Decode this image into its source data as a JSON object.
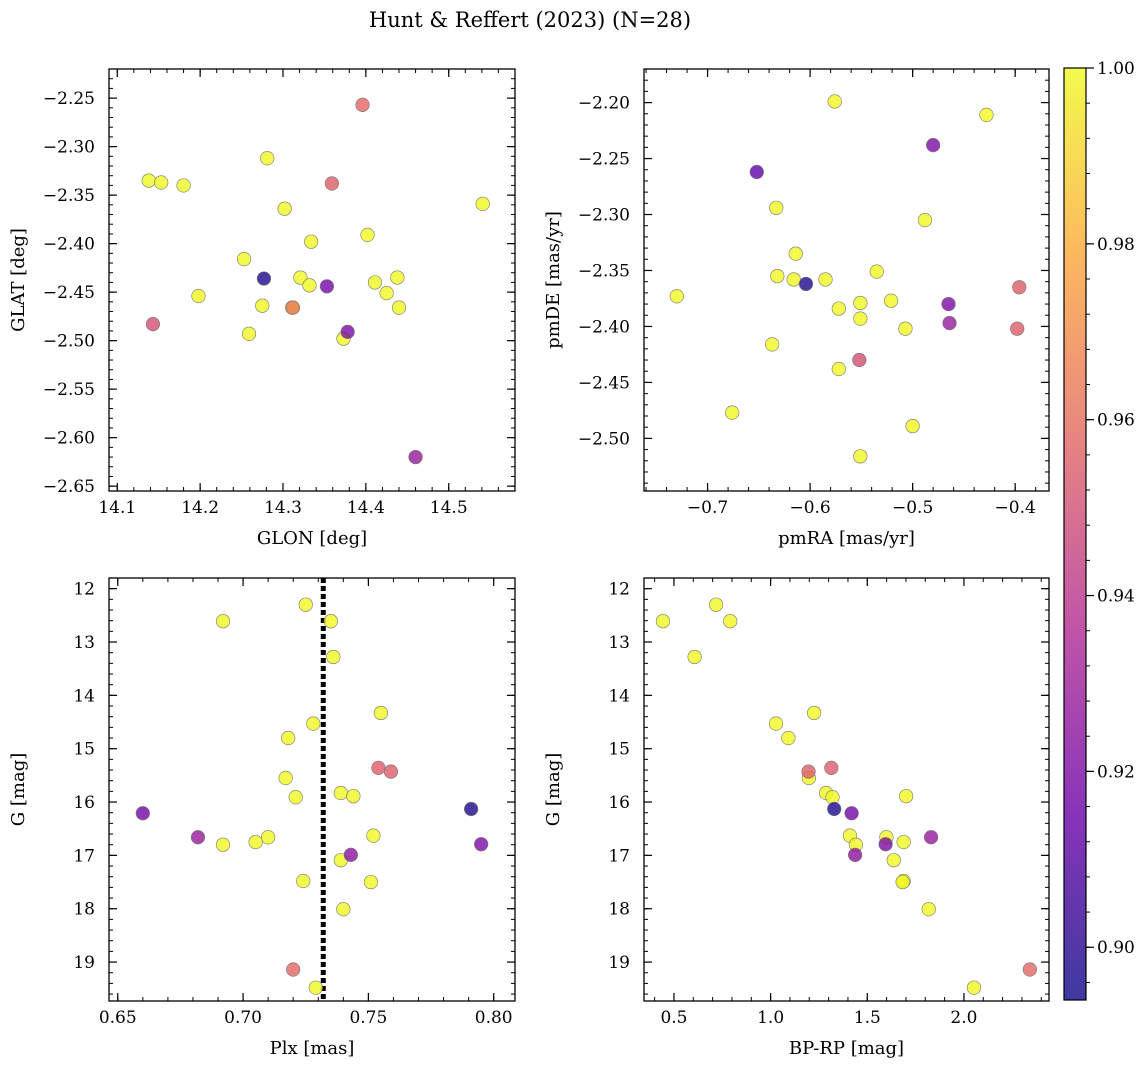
{
  "figure": {
    "title": "Hunt & Reffert (2023) (N=28)",
    "colormap": [
      "#0d0887",
      "#6a00a8",
      "#b12a90",
      "#e16462",
      "#fca636",
      "#f0f921"
    ],
    "colorbar": {
      "range": [
        0.894,
        1.0
      ],
      "ticks": [
        0.9,
        0.92,
        0.94,
        0.96,
        0.98,
        1.0
      ],
      "tick_labels": [
        "0.90",
        "0.92",
        "0.94",
        "0.96",
        "0.98",
        "1.00"
      ]
    }
  },
  "chart_data": [
    {
      "type": "scatter",
      "title": "",
      "xlabel": "GLON [deg]",
      "ylabel": "GLAT [deg]",
      "xlim": [
        14.09,
        14.58
      ],
      "ylim": [
        -2.655,
        -2.22
      ],
      "y_inverted": false,
      "xticks": [
        14.1,
        14.2,
        14.3,
        14.4,
        14.5
      ],
      "xtick_labels": [
        "14.1",
        "14.2",
        "14.3",
        "14.4",
        "14.5"
      ],
      "yticks": [
        -2.25,
        -2.3,
        -2.35,
        -2.4,
        -2.45,
        -2.5,
        -2.55,
        -2.6,
        -2.65
      ],
      "ytick_labels": [
        "−2.25",
        "−2.30",
        "−2.35",
        "−2.40",
        "−2.45",
        "−2.50",
        "−2.55",
        "−2.60",
        "−2.65"
      ],
      "points": [
        {
          "x": 14.396,
          "y": -2.257,
          "c": 0.958
        },
        {
          "x": 14.281,
          "y": -2.312,
          "c": 1.0
        },
        {
          "x": 14.138,
          "y": -2.335,
          "c": 1.0
        },
        {
          "x": 14.153,
          "y": -2.337,
          "c": 1.0
        },
        {
          "x": 14.18,
          "y": -2.34,
          "c": 1.0
        },
        {
          "x": 14.359,
          "y": -2.338,
          "c": 0.955
        },
        {
          "x": 14.541,
          "y": -2.359,
          "c": 1.0
        },
        {
          "x": 14.302,
          "y": -2.364,
          "c": 1.0
        },
        {
          "x": 14.402,
          "y": -2.391,
          "c": 1.0
        },
        {
          "x": 14.334,
          "y": -2.398,
          "c": 1.0
        },
        {
          "x": 14.253,
          "y": -2.416,
          "c": 1.0
        },
        {
          "x": 14.277,
          "y": -2.436,
          "c": 0.897
        },
        {
          "x": 14.321,
          "y": -2.435,
          "c": 1.0
        },
        {
          "x": 14.438,
          "y": -2.435,
          "c": 1.0
        },
        {
          "x": 14.411,
          "y": -2.44,
          "c": 1.0
        },
        {
          "x": 14.332,
          "y": -2.443,
          "c": 1.0
        },
        {
          "x": 14.353,
          "y": -2.444,
          "c": 0.918
        },
        {
          "x": 14.425,
          "y": -2.451,
          "c": 1.0
        },
        {
          "x": 14.198,
          "y": -2.454,
          "c": 1.0
        },
        {
          "x": 14.275,
          "y": -2.464,
          "c": 1.0
        },
        {
          "x": 14.312,
          "y": -2.466,
          "c": 0.962
        },
        {
          "x": 14.311,
          "y": -2.466,
          "c": 1.0
        },
        {
          "x": 14.44,
          "y": -2.466,
          "c": 1.0
        },
        {
          "x": 14.143,
          "y": -2.483,
          "c": 0.95
        },
        {
          "x": 14.378,
          "y": -2.491,
          "c": 0.92
        },
        {
          "x": 14.259,
          "y": -2.493,
          "c": 1.0
        },
        {
          "x": 14.373,
          "y": -2.498,
          "c": 1.0
        },
        {
          "x": 14.46,
          "y": -2.62,
          "c": 0.928
        }
      ]
    },
    {
      "type": "scatter",
      "title": "",
      "xlabel": "pmRA [mas/yr]",
      "ylabel": "pmDE [mas/yr]",
      "xlim": [
        -0.762,
        -0.367
      ],
      "ylim": [
        -2.547,
        -2.17
      ],
      "y_inverted": false,
      "xticks": [
        -0.7,
        -0.6,
        -0.5,
        -0.4
      ],
      "xtick_labels": [
        "−0.7",
        "−0.6",
        "−0.5",
        "−0.4"
      ],
      "yticks": [
        -2.2,
        -2.25,
        -2.3,
        -2.35,
        -2.4,
        -2.45,
        -2.5
      ],
      "ytick_labels": [
        "−2.20",
        "−2.25",
        "−2.30",
        "−2.35",
        "−2.40",
        "−2.45",
        "−2.50"
      ],
      "points": [
        {
          "x": -0.576,
          "y": -2.199,
          "c": 1.0
        },
        {
          "x": -0.428,
          "y": -2.211,
          "c": 1.0
        },
        {
          "x": -0.48,
          "y": -2.238,
          "c": 0.92
        },
        {
          "x": -0.652,
          "y": -2.262,
          "c": 0.913
        },
        {
          "x": -0.633,
          "y": -2.294,
          "c": 1.0
        },
        {
          "x": -0.488,
          "y": -2.305,
          "c": 1.0
        },
        {
          "x": -0.614,
          "y": -2.335,
          "c": 1.0
        },
        {
          "x": -0.535,
          "y": -2.351,
          "c": 1.0
        },
        {
          "x": -0.632,
          "y": -2.355,
          "c": 1.0
        },
        {
          "x": -0.616,
          "y": -2.358,
          "c": 1.0
        },
        {
          "x": -0.585,
          "y": -2.358,
          "c": 1.0
        },
        {
          "x": -0.604,
          "y": -2.362,
          "c": 0.897
        },
        {
          "x": -0.396,
          "y": -2.365,
          "c": 0.955
        },
        {
          "x": -0.73,
          "y": -2.373,
          "c": 1.0
        },
        {
          "x": -0.521,
          "y": -2.377,
          "c": 1.0
        },
        {
          "x": -0.551,
          "y": -2.379,
          "c": 1.0
        },
        {
          "x": -0.465,
          "y": -2.38,
          "c": 0.92
        },
        {
          "x": -0.572,
          "y": -2.384,
          "c": 1.0
        },
        {
          "x": -0.551,
          "y": -2.393,
          "c": 1.0
        },
        {
          "x": -0.464,
          "y": -2.397,
          "c": 0.928
        },
        {
          "x": -0.398,
          "y": -2.402,
          "c": 0.955
        },
        {
          "x": -0.507,
          "y": -2.402,
          "c": 1.0
        },
        {
          "x": -0.637,
          "y": -2.416,
          "c": 1.0
        },
        {
          "x": -0.552,
          "y": -2.43,
          "c": 0.95
        },
        {
          "x": -0.572,
          "y": -2.438,
          "c": 1.0
        },
        {
          "x": -0.676,
          "y": -2.477,
          "c": 1.0
        },
        {
          "x": -0.5,
          "y": -2.489,
          "c": 1.0
        },
        {
          "x": -0.551,
          "y": -2.516,
          "c": 1.0
        }
      ]
    },
    {
      "type": "scatter",
      "title": "",
      "xlabel": "Plx [mas]",
      "ylabel": "G [mag]",
      "xlim": [
        0.6465,
        0.8085
      ],
      "ylim": [
        11.8,
        19.73
      ],
      "y_inverted": true,
      "vline": {
        "x": 0.732,
        "style": "dotted"
      },
      "xticks": [
        0.65,
        0.7,
        0.75,
        0.8
      ],
      "xtick_labels": [
        "0.65",
        "0.70",
        "0.75",
        "0.80"
      ],
      "yticks": [
        12,
        13,
        14,
        15,
        16,
        17,
        18,
        19
      ],
      "ytick_labels": [
        "12",
        "13",
        "14",
        "15",
        "16",
        "17",
        "18",
        "19"
      ],
      "points": [
        {
          "x": 0.725,
          "y": 12.3,
          "c": 1.0
        },
        {
          "x": 0.692,
          "y": 12.61,
          "c": 1.0
        },
        {
          "x": 0.735,
          "y": 12.61,
          "c": 1.0
        },
        {
          "x": 0.736,
          "y": 13.28,
          "c": 1.0
        },
        {
          "x": 0.755,
          "y": 14.33,
          "c": 1.0
        },
        {
          "x": 0.728,
          "y": 14.53,
          "c": 1.0
        },
        {
          "x": 0.718,
          "y": 14.8,
          "c": 1.0
        },
        {
          "x": 0.754,
          "y": 15.36,
          "c": 0.955
        },
        {
          "x": 0.759,
          "y": 15.43,
          "c": 0.955
        },
        {
          "x": 0.717,
          "y": 15.55,
          "c": 1.0
        },
        {
          "x": 0.739,
          "y": 15.83,
          "c": 1.0
        },
        {
          "x": 0.721,
          "y": 15.91,
          "c": 1.0
        },
        {
          "x": 0.744,
          "y": 15.89,
          "c": 1.0
        },
        {
          "x": 0.791,
          "y": 16.13,
          "c": 0.897
        },
        {
          "x": 0.66,
          "y": 16.21,
          "c": 0.918
        },
        {
          "x": 0.752,
          "y": 16.63,
          "c": 1.0
        },
        {
          "x": 0.682,
          "y": 16.66,
          "c": 0.928
        },
        {
          "x": 0.71,
          "y": 16.66,
          "c": 1.0
        },
        {
          "x": 0.705,
          "y": 16.75,
          "c": 1.0
        },
        {
          "x": 0.692,
          "y": 16.8,
          "c": 1.0
        },
        {
          "x": 0.795,
          "y": 16.79,
          "c": 0.92
        },
        {
          "x": 0.743,
          "y": 16.99,
          "c": 0.925
        },
        {
          "x": 0.739,
          "y": 17.09,
          "c": 1.0
        },
        {
          "x": 0.724,
          "y": 17.48,
          "c": 1.0
        },
        {
          "x": 0.751,
          "y": 17.5,
          "c": 1.0
        },
        {
          "x": 0.74,
          "y": 18.01,
          "c": 1.0
        },
        {
          "x": 0.72,
          "y": 19.14,
          "c": 0.958
        },
        {
          "x": 0.729,
          "y": 19.48,
          "c": 1.0
        }
      ]
    },
    {
      "type": "scatter",
      "title": "",
      "xlabel": "BP-RP [mag]",
      "ylabel": "G [mag]",
      "xlim": [
        0.345,
        2.44
      ],
      "ylim": [
        11.8,
        19.73
      ],
      "y_inverted": true,
      "xticks": [
        0.5,
        1.0,
        1.5,
        2.0
      ],
      "xtick_labels": [
        "0.5",
        "1.0",
        "1.5",
        "2.0"
      ],
      "yticks": [
        12,
        13,
        14,
        15,
        16,
        17,
        18,
        19
      ],
      "ytick_labels": [
        "12",
        "13",
        "14",
        "15",
        "16",
        "17",
        "18",
        "19"
      ],
      "points": [
        {
          "x": 0.718,
          "y": 12.3,
          "c": 1.0
        },
        {
          "x": 0.443,
          "y": 12.61,
          "c": 1.0
        },
        {
          "x": 0.791,
          "y": 12.61,
          "c": 1.0
        },
        {
          "x": 0.607,
          "y": 13.28,
          "c": 1.0
        },
        {
          "x": 1.225,
          "y": 14.33,
          "c": 1.0
        },
        {
          "x": 1.028,
          "y": 14.53,
          "c": 1.0
        },
        {
          "x": 1.092,
          "y": 14.8,
          "c": 1.0
        },
        {
          "x": 1.314,
          "y": 15.36,
          "c": 0.955
        },
        {
          "x": 1.196,
          "y": 15.43,
          "c": 0.955
        },
        {
          "x": 1.198,
          "y": 15.55,
          "c": 1.0
        },
        {
          "x": 1.287,
          "y": 15.83,
          "c": 1.0
        },
        {
          "x": 1.32,
          "y": 15.91,
          "c": 1.0
        },
        {
          "x": 1.701,
          "y": 15.89,
          "c": 1.0
        },
        {
          "x": 1.329,
          "y": 16.13,
          "c": 0.897
        },
        {
          "x": 1.419,
          "y": 16.21,
          "c": 0.918
        },
        {
          "x": 1.41,
          "y": 16.63,
          "c": 1.0
        },
        {
          "x": 1.83,
          "y": 16.66,
          "c": 0.928
        },
        {
          "x": 1.599,
          "y": 16.66,
          "c": 1.0
        },
        {
          "x": 1.688,
          "y": 16.75,
          "c": 1.0
        },
        {
          "x": 1.441,
          "y": 16.8,
          "c": 1.0
        },
        {
          "x": 1.595,
          "y": 16.79,
          "c": 0.92
        },
        {
          "x": 1.437,
          "y": 16.99,
          "c": 0.925
        },
        {
          "x": 1.637,
          "y": 17.09,
          "c": 1.0
        },
        {
          "x": 1.688,
          "y": 17.48,
          "c": 1.0
        },
        {
          "x": 1.683,
          "y": 17.5,
          "c": 1.0
        },
        {
          "x": 1.818,
          "y": 18.01,
          "c": 1.0
        },
        {
          "x": 2.341,
          "y": 19.14,
          "c": 0.958
        },
        {
          "x": 2.052,
          "y": 19.48,
          "c": 1.0
        }
      ]
    }
  ]
}
